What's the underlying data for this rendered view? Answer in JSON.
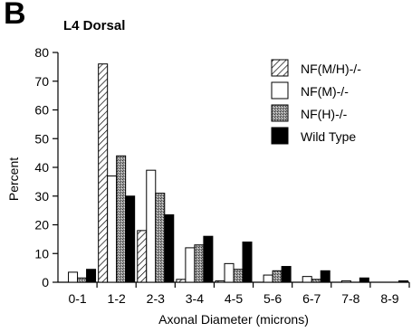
{
  "figure": {
    "panel_label": "B",
    "panel_title": "L4 Dorsal"
  },
  "chart_data": {
    "type": "bar",
    "title": "L4 Dorsal",
    "xlabel": "Axonal Diameter (microns)",
    "ylabel": "Percent",
    "ylim": [
      0,
      80
    ],
    "yticks": [
      0,
      10,
      20,
      30,
      40,
      50,
      60,
      70,
      80
    ],
    "categories": [
      "0-1",
      "1-2",
      "2-3",
      "3-4",
      "4-5",
      "5-6",
      "6-7",
      "7-8",
      "8-9"
    ],
    "series": [
      {
        "name": "NF(M/H)-/-",
        "fill": "hatch",
        "values": [
          0,
          76,
          18,
          1,
          0.5,
          0,
          0,
          0,
          0
        ]
      },
      {
        "name": "NF(M)-/-",
        "fill": "white",
        "values": [
          3.5,
          37,
          39,
          12,
          6.5,
          2.5,
          2,
          0.5,
          0
        ]
      },
      {
        "name": "NF(H)-/-",
        "fill": "gray",
        "values": [
          1.5,
          44,
          31,
          13,
          4.5,
          4,
          1,
          0,
          0
        ]
      },
      {
        "name": "Wild Type",
        "fill": "black",
        "values": [
          4.5,
          30,
          23.5,
          16,
          14,
          5.5,
          4,
          1.5,
          0.5
        ]
      }
    ],
    "legend_position": "top-right",
    "grid": false
  }
}
